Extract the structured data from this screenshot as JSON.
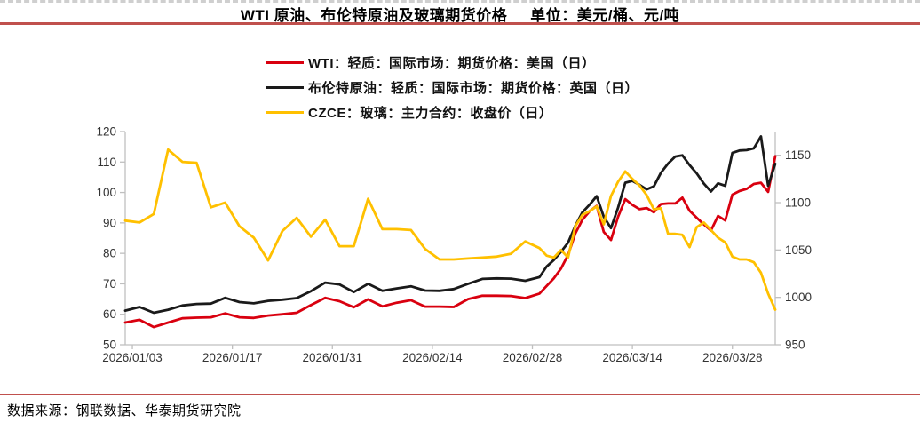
{
  "header": {
    "title_main": "WTI 原油、布伦特原油及玻璃期货价格",
    "title_unit": "单位：美元/桶、元/吨",
    "underline_color": "#c0504d",
    "top_border_color": "#cfcfcf"
  },
  "legend": {
    "items": [
      {
        "label": "WTI：轻质：国际市场：期货价格：美国（日）",
        "color": "#d9000f"
      },
      {
        "label": "布伦特原油：轻质：国际市场：期货价格：英国（日）",
        "color": "#1a1a1a"
      },
      {
        "label": "CZCE：玻璃：主力合约：收盘价（日）",
        "color": "#ffc000"
      }
    ]
  },
  "footer": {
    "divider_color": "#c0504d",
    "source_text": "数据来源：钢联数据、华泰期货研究院"
  },
  "chart_data": {
    "type": "line",
    "title": "WTI 原油、布伦特原油及玻璃期货价格",
    "units": "美元/桶、元/吨",
    "grid": false,
    "legend_position": "top",
    "axes": {
      "left": {
        "min": 50,
        "max": 120,
        "ticks": [
          50,
          60,
          70,
          80,
          90,
          100,
          110,
          120
        ]
      },
      "right": {
        "min": 950,
        "max": 1175,
        "ticks": [
          950,
          1000,
          1050,
          1100,
          1150
        ]
      },
      "x_ticks": [
        "2026/01/03",
        "2026/01/17",
        "2026/01/31",
        "2026/02/14",
        "2026/02/28",
        "2026/03/14",
        "2026/03/28"
      ],
      "axis_color": "#bfbfbf"
    },
    "x": [
      "2026/01/02",
      "2026/01/04",
      "2026/01/06",
      "2026/01/08",
      "2026/01/10",
      "2026/01/12",
      "2026/01/14",
      "2026/01/16",
      "2026/01/18",
      "2026/01/20",
      "2026/01/22",
      "2026/01/24",
      "2026/01/26",
      "2026/01/28",
      "2026/01/30",
      "2026/02/01",
      "2026/02/03",
      "2026/02/05",
      "2026/02/07",
      "2026/02/09",
      "2026/02/11",
      "2026/02/13",
      "2026/02/15",
      "2026/02/17",
      "2026/02/19",
      "2026/02/21",
      "2026/02/23",
      "2026/02/25",
      "2026/02/27",
      "2026/03/01",
      "2026/03/02",
      "2026/03/03",
      "2026/03/04",
      "2026/03/05",
      "2026/03/06",
      "2026/03/07",
      "2026/03/08",
      "2026/03/09",
      "2026/03/10",
      "2026/03/11",
      "2026/03/12",
      "2026/03/13",
      "2026/03/14",
      "2026/03/15",
      "2026/03/16",
      "2026/03/17",
      "2026/03/18",
      "2026/03/19",
      "2026/03/20",
      "2026/03/21",
      "2026/03/22",
      "2026/03/23",
      "2026/03/24",
      "2026/03/25",
      "2026/03/26",
      "2026/03/27",
      "2026/03/28",
      "2026/03/29",
      "2026/03/30",
      "2026/03/31",
      "2026/04/01",
      "2026/04/02",
      "2026/04/03"
    ],
    "series": [
      {
        "name": "WTI：轻质：国际市场：期货价格：美国（日）",
        "axis": "left",
        "color": "#d9000f",
        "values": [
          57.3,
          58.2,
          55.8,
          57.3,
          58.7,
          58.9,
          59.0,
          60.3,
          59.0,
          58.8,
          59.6,
          60.0,
          60.5,
          63.0,
          65.4,
          64.3,
          62.3,
          64.9,
          62.6,
          63.8,
          64.6,
          62.5,
          62.5,
          62.4,
          65.0,
          66.1,
          66.1,
          66.0,
          65.3,
          66.8,
          69.3,
          71.8,
          75.0,
          79.5,
          86.5,
          91.0,
          93.8,
          95.6,
          87.0,
          84.4,
          92.0,
          97.8,
          95.9,
          94.5,
          94.9,
          93.5,
          96.2,
          96.4,
          96.4,
          98.3,
          94.0,
          91.7,
          89.5,
          87.5,
          92.3,
          90.8,
          99.3,
          100.5,
          101.2,
          102.8,
          103.2,
          100.2,
          111.9
        ]
      },
      {
        "name": "布伦特原油：轻质：国际市场：期货价格：英国（日）",
        "axis": "left",
        "color": "#1a1a1a",
        "values": [
          61.2,
          62.4,
          60.5,
          61.5,
          62.9,
          63.4,
          63.5,
          65.4,
          64.0,
          63.6,
          64.4,
          64.8,
          65.3,
          67.6,
          70.4,
          69.8,
          67.3,
          70.0,
          67.7,
          68.5,
          69.2,
          67.8,
          67.7,
          68.3,
          70.0,
          71.6,
          71.8,
          71.7,
          71.0,
          72.2,
          75.7,
          77.8,
          80.5,
          83.5,
          89.0,
          93.5,
          96.0,
          98.8,
          92.0,
          88.3,
          95.0,
          103.2,
          103.8,
          102.5,
          101.0,
          102.0,
          106.5,
          109.5,
          111.8,
          112.2,
          109.0,
          106.3,
          102.9,
          100.3,
          103.0,
          102.2,
          113.0,
          113.8,
          113.9,
          114.5,
          118.4,
          102.2,
          109.4
        ]
      },
      {
        "name": "CZCE：玻璃：主力合约：收盘价（日）",
        "axis": "right",
        "color": "#ffc000",
        "values": [
          1081,
          1079,
          1088,
          1156,
          1143,
          1142,
          1095,
          1100,
          1075,
          1063,
          1039,
          1070,
          1084,
          1064,
          1082,
          1054,
          1054,
          1104,
          1072,
          1072,
          1071,
          1051,
          1040,
          1040,
          1041,
          1042,
          1043,
          1046,
          1059,
          1052,
          1044,
          1042,
          1050,
          1042,
          1075,
          1087,
          1091,
          1096,
          1077,
          1107,
          1122,
          1133,
          1125,
          1118,
          1108,
          1093,
          1094,
          1067,
          1067,
          1066,
          1053,
          1074,
          1079,
          1071,
          1063,
          1058,
          1043,
          1040,
          1040,
          1037,
          1026,
          1004,
          987
        ]
      }
    ]
  }
}
